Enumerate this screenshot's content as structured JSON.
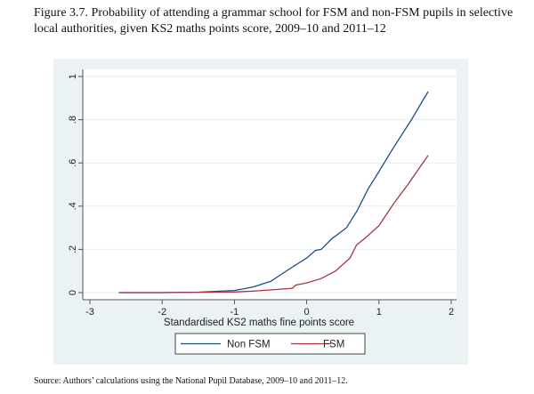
{
  "caption": "Figure 3.7. Probability of attending a grammar school for FSM and non-FSM pupils in selective local authorities, given KS2 maths points score, 2009–10 and 2011–12",
  "source": "Source: Authors’ calculations using the National Pupil Database, 2009–10 and 2011–12.",
  "chart_data": {
    "type": "line",
    "title": "",
    "xlabel": "Standardised KS2 maths fine points score",
    "ylabel": "",
    "xlim": [
      -3,
      2
    ],
    "ylim": [
      0,
      1
    ],
    "xticks": [
      "-3",
      "-2",
      "-1",
      "0",
      "1",
      "2"
    ],
    "yticks": [
      "0",
      ".2",
      ".4",
      ".6",
      ".8",
      "1"
    ],
    "grid": true,
    "legend": "bottom",
    "series": [
      {
        "name": "Non FSM",
        "color": "#1f4e8c",
        "x": [
          -2.6,
          -2.0,
          -1.5,
          -1.0,
          -0.75,
          -0.5,
          -0.25,
          0.0,
          0.12,
          0.2,
          0.35,
          0.55,
          0.7,
          0.85,
          1.0,
          1.2,
          1.45,
          1.68
        ],
        "y": [
          0.0,
          0.0,
          0.002,
          0.01,
          0.025,
          0.052,
          0.107,
          0.16,
          0.195,
          0.2,
          0.25,
          0.3,
          0.38,
          0.48,
          0.56,
          0.67,
          0.8,
          0.93
        ]
      },
      {
        "name": "FSM",
        "color": "#a8333f",
        "x": [
          -2.6,
          -2.0,
          -1.0,
          -0.7,
          -0.4,
          -0.2,
          -0.15,
          0.0,
          0.2,
          0.4,
          0.6,
          0.69,
          0.8,
          1.0,
          1.2,
          1.4,
          1.68
        ],
        "y": [
          0.0,
          0.0,
          0.003,
          0.008,
          0.015,
          0.02,
          0.035,
          0.045,
          0.065,
          0.1,
          0.16,
          0.22,
          0.25,
          0.31,
          0.41,
          0.5,
          0.635
        ]
      }
    ]
  }
}
